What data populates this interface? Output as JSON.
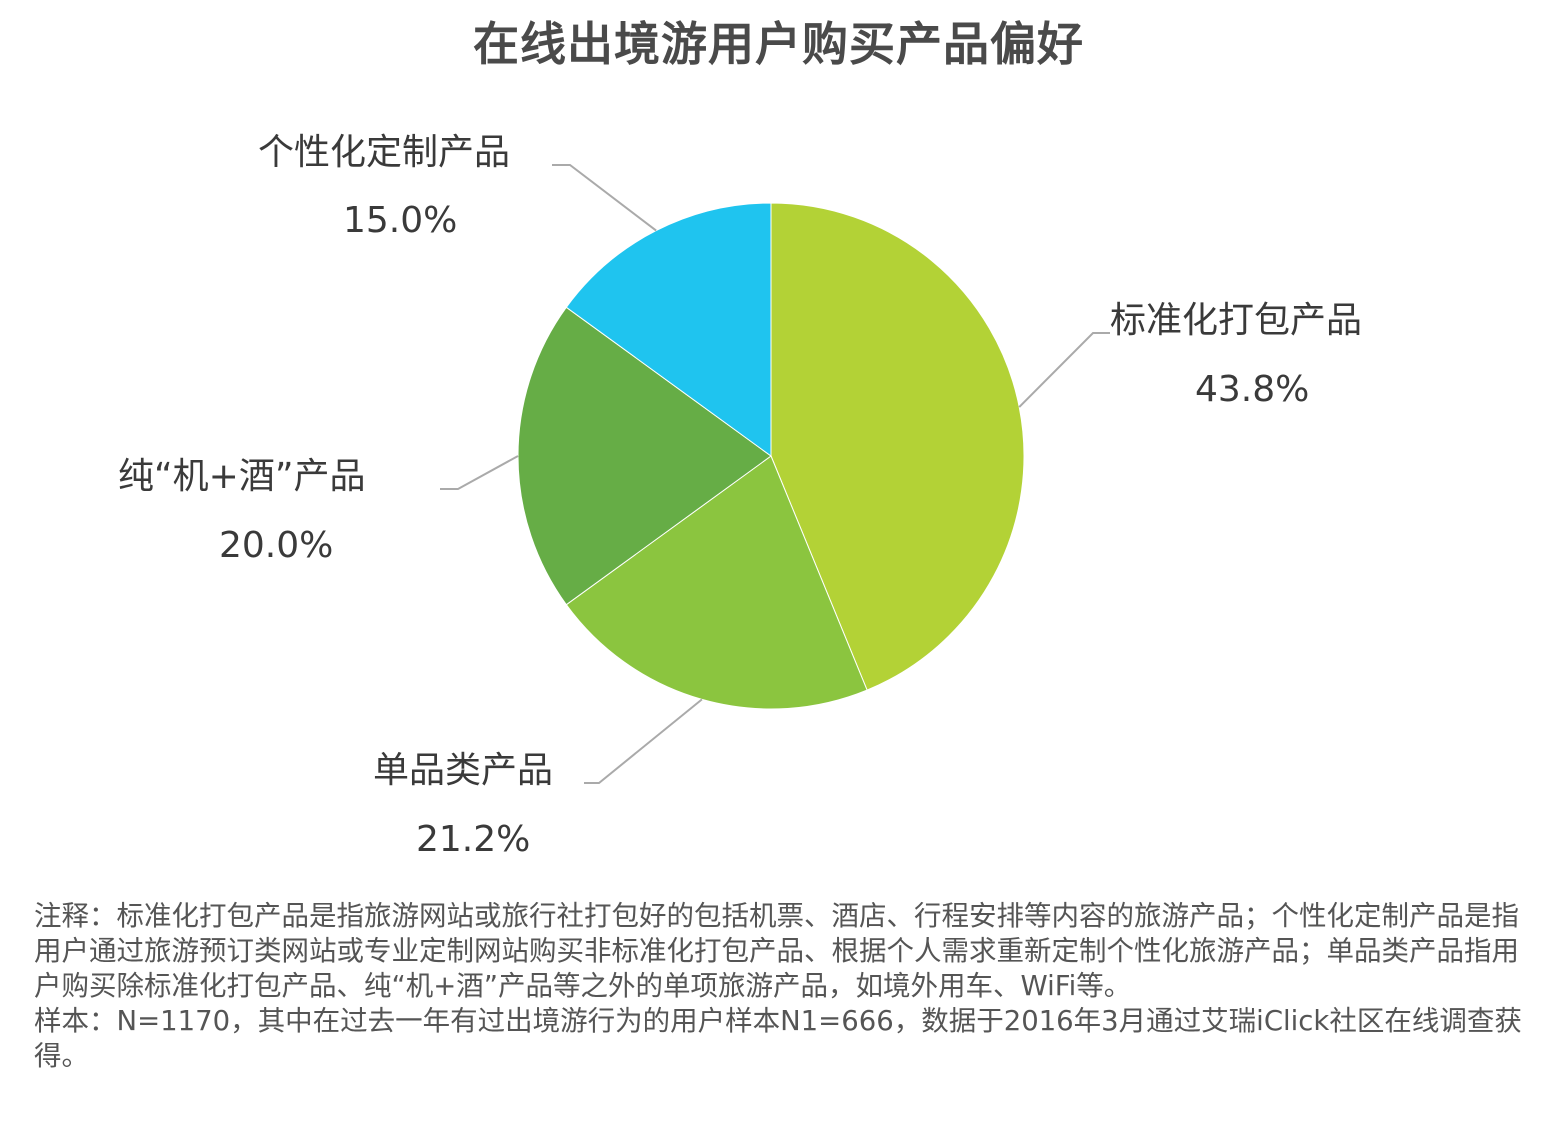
{
  "title": "在线出境游用户购买产品偏好",
  "chart_data": {
    "type": "pie",
    "title": "在线出境游用户购买产品偏好",
    "slices": [
      {
        "label": "标准化打包产品",
        "value": 43.8,
        "value_text": "43.8%",
        "color": "#b3d236"
      },
      {
        "label": "单品类产品",
        "value": 21.2,
        "value_text": "21.2%",
        "color": "#8bc53f"
      },
      {
        "label": "纯“机+酒”产品",
        "value": 20.0,
        "value_text": "20.0%",
        "color": "#66ad46"
      },
      {
        "label": "个性化定制产品",
        "value": 15.0,
        "value_text": "15.0%",
        "color": "#1fc4ef"
      }
    ],
    "start_angle": "12 o'clock",
    "direction": "clockwise",
    "legend": "none",
    "leader_line_color": "#aaaaaa"
  },
  "notes": {
    "note": "注释：标准化打包产品是指旅游网站或旅行社打包好的包括机票、酒店、行程安排等内容的旅游产品；个性化定制产品是指用户通过旅游预订类网站或专业定制网站购买非标准化打包产品、根据个人需求重新定制个性化旅游产品；单品类产品指用户购买除标准化打包产品、纯“机+酒”产品等之外的单项旅游产品，如境外用车、WiFi等。",
    "sample": "样本：N=1170，其中在过去一年有过出境游行为的用户样本N1=666，数据于2016年3月通过艾瑞iClick社区在线调查获得。"
  }
}
